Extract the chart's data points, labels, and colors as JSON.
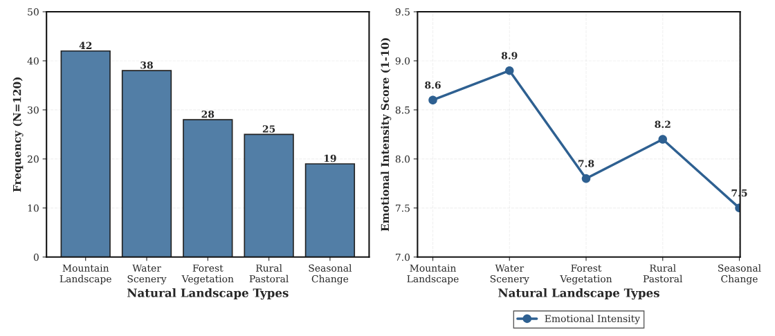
{
  "chart_data": [
    {
      "type": "bar",
      "categories": [
        "Mountain\nLandscape",
        "Water\nScenery",
        "Forest\nVegetation",
        "Rural\nPastoral",
        "Seasonal\nChange"
      ],
      "values": [
        42,
        38,
        28,
        25,
        19
      ],
      "color": "#527ea6",
      "xlabel": "Natural Landscape Types",
      "ylabel": "Frequency (N=120)",
      "ylim": [
        0,
        50
      ],
      "yticks": [
        0,
        10,
        20,
        30,
        40,
        50
      ],
      "grid": "y",
      "data_labels": true
    },
    {
      "type": "line",
      "categories": [
        "Mountain\nLandscape",
        "Water\nScenery",
        "Forest\nVegetation",
        "Rural\nPastoral",
        "Seasonal\nChange"
      ],
      "series": [
        {
          "name": "Emotional Intensity",
          "color": "#2e6091",
          "values": [
            8.6,
            8.9,
            7.8,
            8.2,
            7.5
          ]
        }
      ],
      "xlabel": "Natural Landscape Types",
      "ylabel": "Emotional Intensity Score (1-10)",
      "ylim": [
        7.0,
        9.5
      ],
      "yticks": [
        {
          "value": 7.0,
          "label": "7.0"
        },
        {
          "value": 7.5,
          "label": "7.5"
        },
        {
          "value": 8.0,
          "label": "8.0"
        },
        {
          "value": 8.5,
          "label": "8.5"
        },
        {
          "value": 9.0,
          "label": "9.0"
        },
        {
          "value": 9.5,
          "label": "9.5"
        }
      ],
      "grid": true,
      "marker": "circle",
      "line_style": "solid",
      "legend": "bottom",
      "data_labels": true
    }
  ]
}
